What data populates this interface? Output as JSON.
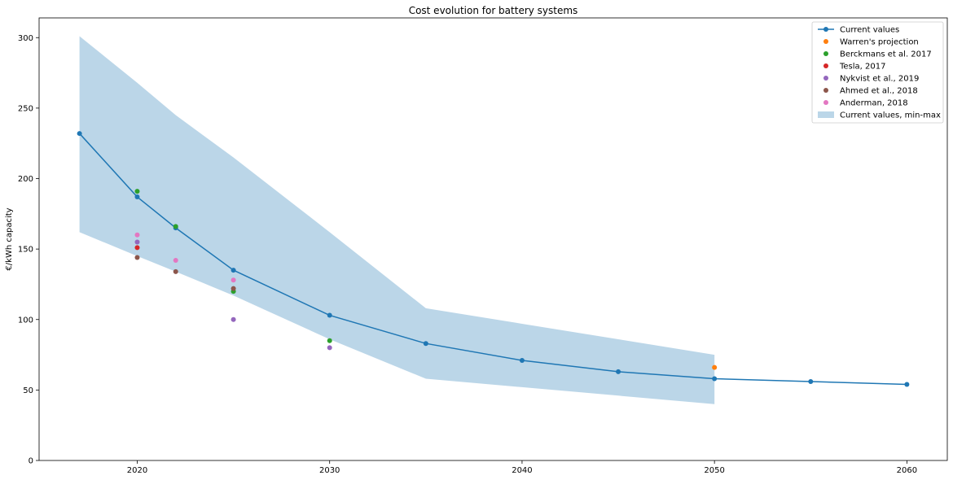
{
  "chart_data": {
    "type": "line",
    "title": "Cost evolution for battery systems",
    "xlabel": "",
    "ylabel": "€/kWh capacity",
    "xlim": [
      2014.9,
      2062.1
    ],
    "ylim": [
      0,
      314
    ],
    "xticks": [
      2020,
      2030,
      2040,
      2050,
      2060
    ],
    "yticks": [
      0,
      50,
      100,
      150,
      200,
      250,
      300
    ],
    "grid": false,
    "legend_position": "top-right",
    "band": {
      "name": "Current values, min-max",
      "color": "#1f77b4",
      "x": [
        2017,
        2020,
        2022,
        2025,
        2030,
        2035,
        2040,
        2045,
        2050
      ],
      "lower": [
        162,
        145,
        134,
        117,
        86,
        58,
        52,
        46,
        40
      ],
      "upper": [
        301,
        268,
        245,
        215,
        162,
        108,
        97,
        86,
        75
      ]
    },
    "series": [
      {
        "name": "Current values",
        "style": "line-marker",
        "color": "#1f77b4",
        "x": [
          2017,
          2020,
          2022,
          2025,
          2030,
          2035,
          2040,
          2045,
          2050,
          2055,
          2060
        ],
        "y": [
          232,
          187,
          165,
          135,
          103,
          83,
          71,
          63,
          58,
          56,
          54
        ]
      },
      {
        "name": "Warren's projection",
        "style": "marker",
        "color": "#ff7f0e",
        "x": [
          2050
        ],
        "y": [
          66
        ]
      },
      {
        "name": "Berckmans et al. 2017",
        "style": "marker",
        "color": "#2ca02c",
        "x": [
          2020,
          2022,
          2025,
          2030
        ],
        "y": [
          191,
          166,
          120,
          85
        ]
      },
      {
        "name": "Tesla, 2017",
        "style": "marker",
        "color": "#d62728",
        "x": [
          2020
        ],
        "y": [
          151
        ]
      },
      {
        "name": "Nykvist et al., 2019",
        "style": "marker",
        "color": "#9467bd",
        "x": [
          2020,
          2025,
          2030
        ],
        "y": [
          155,
          100,
          80
        ]
      },
      {
        "name": "Ahmed et al., 2018",
        "style": "marker",
        "color": "#8c564b",
        "x": [
          2020,
          2022,
          2025
        ],
        "y": [
          144,
          134,
          122
        ]
      },
      {
        "name": "Anderman, 2018",
        "style": "marker",
        "color": "#e377c2",
        "x": [
          2020,
          2022,
          2025
        ],
        "y": [
          160,
          142,
          128
        ]
      }
    ]
  }
}
